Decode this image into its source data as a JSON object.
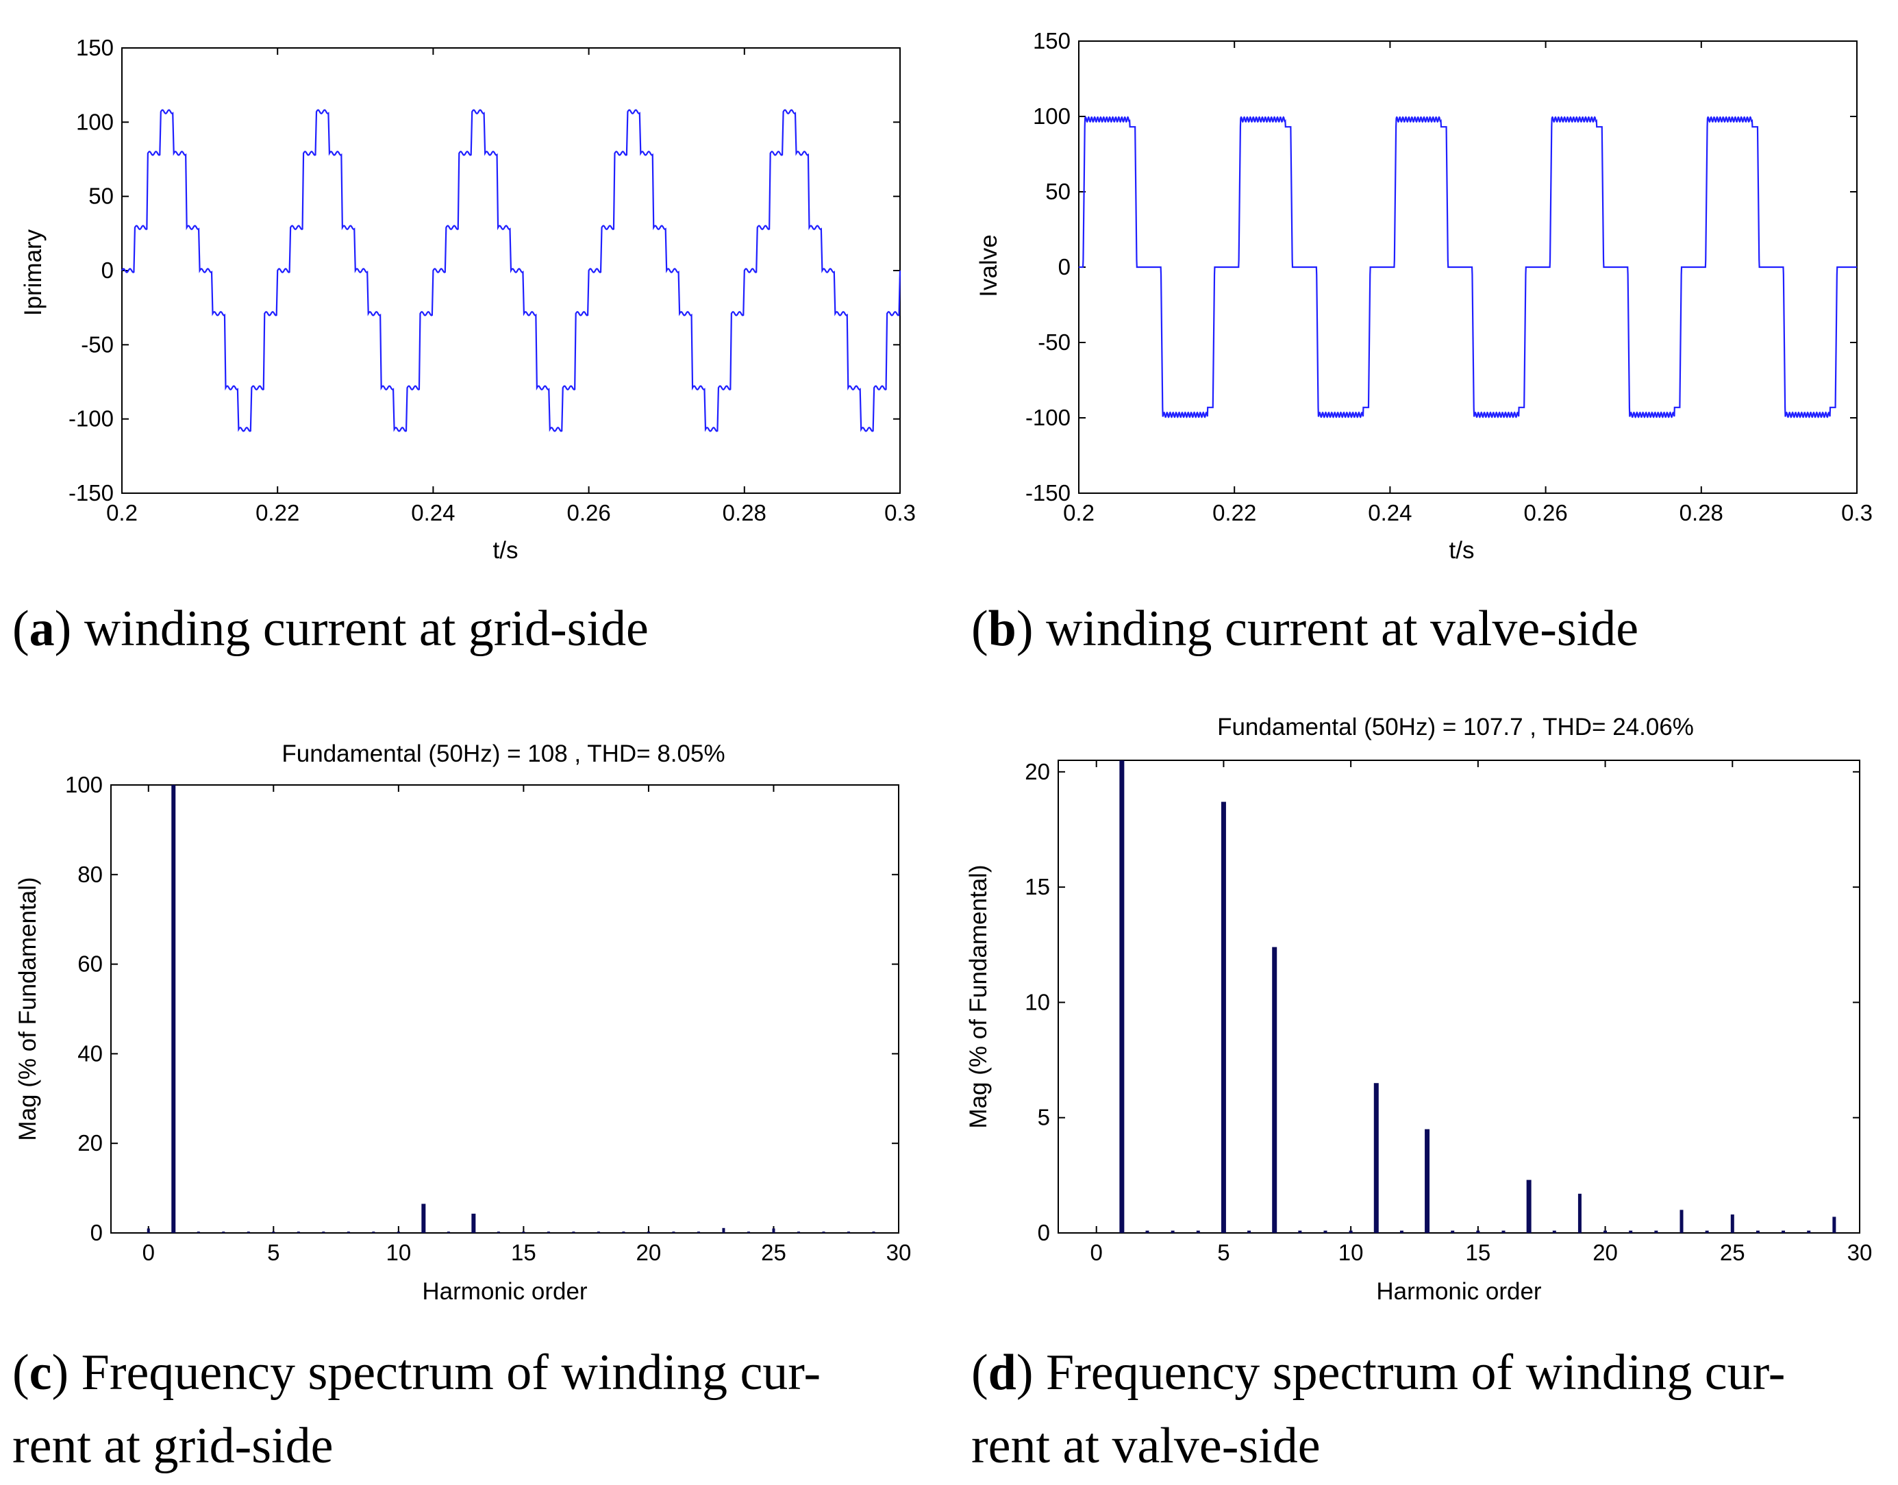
{
  "chart_data": [
    {
      "id": "a",
      "type": "line",
      "caption_label": "a",
      "caption_text": "winding current at grid-side",
      "title": "",
      "xlabel": "t/s",
      "ylabel": "Iprimary",
      "xlim": [
        0.2,
        0.3
      ],
      "ylim": [
        -150,
        150
      ],
      "xticks": [
        "0.2",
        "0.22",
        "0.24",
        "0.26",
        "0.28",
        "0.3"
      ],
      "yticks": [
        "150",
        "100",
        "50",
        "0",
        "-50",
        "-100",
        "-150"
      ],
      "series": [
        {
          "name": "Iprimary",
          "color": "#1f1fff",
          "waveform": "six-pulse stepped sine",
          "frequency_hz": 50,
          "peak": 107,
          "step_levels": [
            0,
            29,
            79,
            107,
            79,
            29,
            0,
            -29,
            -79,
            -107,
            -79,
            -29
          ],
          "phase_start": 0.2
        }
      ]
    },
    {
      "id": "b",
      "type": "line",
      "caption_label": "b",
      "caption_text": "winding current at valve-side",
      "title": "",
      "xlabel": "t/s",
      "ylabel": "Ivalve",
      "xlim": [
        0.2,
        0.3
      ],
      "ylim": [
        -150,
        150
      ],
      "xticks": [
        "0.2",
        "0.22",
        "0.24",
        "0.26",
        "0.28",
        "0.3"
      ],
      "yticks": [
        "150",
        "100",
        "50",
        "0",
        "-50",
        "-100",
        "-150"
      ],
      "series": [
        {
          "name": "Ivalve",
          "color": "#1f1fff",
          "waveform": "quasi-square",
          "frequency_hz": 50,
          "peak": 98,
          "conduction_deg": 120
        }
      ]
    },
    {
      "id": "c",
      "type": "bar",
      "caption_label": "c",
      "caption_text_line1": "Frequency spectrum of winding cur-",
      "caption_text_line2": "rent at grid-side",
      "title": "Fundamental (50Hz) = 108 , THD= 8.05%",
      "xlabel": "Harmonic order",
      "ylabel": "Mag (% of Fundamental)",
      "xlim": [
        -1.5,
        30
      ],
      "ylim": [
        0,
        100
      ],
      "xticks": [
        "0",
        "5",
        "10",
        "15",
        "20",
        "25",
        "30"
      ],
      "yticks": [
        "100",
        "80",
        "60",
        "40",
        "20",
        "0"
      ],
      "bar_color": "#0a0a5a",
      "bars": [
        {
          "x": 0,
          "y": 1.0
        },
        {
          "x": 1,
          "y": 100
        },
        {
          "x": 2,
          "y": 0.2
        },
        {
          "x": 3,
          "y": 0.3
        },
        {
          "x": 4,
          "y": 0.3
        },
        {
          "x": 5,
          "y": 0.3
        },
        {
          "x": 6,
          "y": 0.2
        },
        {
          "x": 7,
          "y": 0.3
        },
        {
          "x": 8,
          "y": 0.2
        },
        {
          "x": 9,
          "y": 0.2
        },
        {
          "x": 10,
          "y": 0.2
        },
        {
          "x": 11,
          "y": 6.5
        },
        {
          "x": 12,
          "y": 0.2
        },
        {
          "x": 13,
          "y": 4.3
        },
        {
          "x": 14,
          "y": 0.3
        },
        {
          "x": 15,
          "y": 0.3
        },
        {
          "x": 16,
          "y": 0.2
        },
        {
          "x": 17,
          "y": 0.2
        },
        {
          "x": 18,
          "y": 0.2
        },
        {
          "x": 19,
          "y": 0.2
        },
        {
          "x": 20,
          "y": 0.2
        },
        {
          "x": 21,
          "y": 0.2
        },
        {
          "x": 22,
          "y": 0.2
        },
        {
          "x": 23,
          "y": 1.1
        },
        {
          "x": 24,
          "y": 0.2
        },
        {
          "x": 25,
          "y": 1.0
        },
        {
          "x": 26,
          "y": 0.2
        },
        {
          "x": 27,
          "y": 0.2
        },
        {
          "x": 28,
          "y": 0.2
        },
        {
          "x": 29,
          "y": 0.2
        }
      ]
    },
    {
      "id": "d",
      "type": "bar",
      "caption_label": "d",
      "caption_text_line1": "Frequency spectrum of winding cur-",
      "caption_text_line2": "rent at valve-side",
      "title": "Fundamental (50Hz) = 107.7 , THD= 24.06%",
      "xlabel": "Harmonic order",
      "ylabel": "Mag (% of Fundamental)",
      "xlim": [
        -1.5,
        30
      ],
      "ylim": [
        0,
        20.5
      ],
      "xticks": [
        "0",
        "5",
        "10",
        "15",
        "20",
        "25",
        "30"
      ],
      "yticks": [
        "20",
        "15",
        "10",
        "5",
        "0"
      ],
      "bar_color": "#0a0a5a",
      "bars": [
        {
          "x": 1,
          "y": 20.5
        },
        {
          "x": 2,
          "y": 0.1
        },
        {
          "x": 3,
          "y": 0.1
        },
        {
          "x": 4,
          "y": 0.1
        },
        {
          "x": 5,
          "y": 18.7
        },
        {
          "x": 6,
          "y": 0.1
        },
        {
          "x": 7,
          "y": 12.4
        },
        {
          "x": 8,
          "y": 0.1
        },
        {
          "x": 9,
          "y": 0.1
        },
        {
          "x": 10,
          "y": 0.1
        },
        {
          "x": 11,
          "y": 6.5
        },
        {
          "x": 12,
          "y": 0.1
        },
        {
          "x": 13,
          "y": 4.5
        },
        {
          "x": 14,
          "y": 0.1
        },
        {
          "x": 15,
          "y": 0.1
        },
        {
          "x": 16,
          "y": 0.1
        },
        {
          "x": 17,
          "y": 2.3
        },
        {
          "x": 18,
          "y": 0.1
        },
        {
          "x": 19,
          "y": 1.7
        },
        {
          "x": 20,
          "y": 0.1
        },
        {
          "x": 21,
          "y": 0.1
        },
        {
          "x": 22,
          "y": 0.1
        },
        {
          "x": 23,
          "y": 1.0
        },
        {
          "x": 24,
          "y": 0.1
        },
        {
          "x": 25,
          "y": 0.8
        },
        {
          "x": 26,
          "y": 0.1
        },
        {
          "x": 27,
          "y": 0.1
        },
        {
          "x": 28,
          "y": 0.1
        },
        {
          "x": 29,
          "y": 0.7
        }
      ]
    }
  ]
}
